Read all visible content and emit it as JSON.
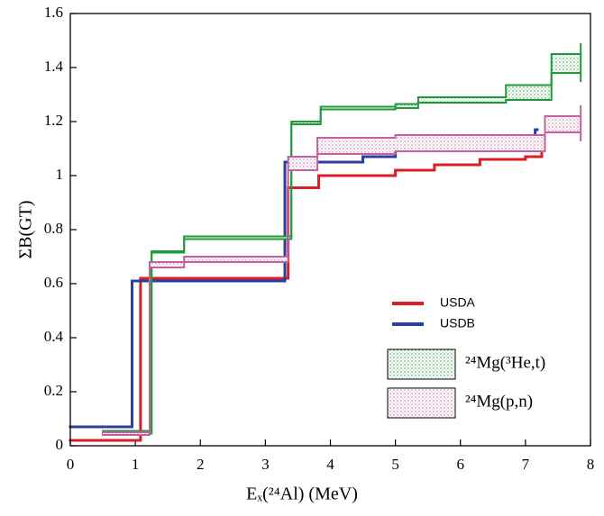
{
  "chart_data": {
    "type": "line",
    "step": "post",
    "x_label": "Eₓ(²⁴Al) (MeV)",
    "y_label": "ΣB(GT)",
    "xlim": [
      0,
      8
    ],
    "xticks": [
      0,
      1,
      2,
      3,
      4,
      5,
      6,
      7,
      8
    ],
    "ylim": [
      0,
      1.6
    ],
    "yticks": [
      0,
      0.2,
      0.4,
      0.6,
      0.8,
      1,
      1.2,
      1.4,
      1.6
    ],
    "series": [
      {
        "name": "USDA",
        "color": "#d81e27",
        "x": [
          0,
          1.08,
          3.35,
          3.82,
          5.0,
          5.6,
          6.3,
          7.0,
          7.25
        ],
        "x_end": 7.28,
        "values": [
          0.02,
          0.62,
          0.955,
          1.0,
          1.02,
          1.04,
          1.06,
          1.07,
          1.14
        ]
      },
      {
        "name": "USDB",
        "color": "#2b3f9a",
        "x": [
          0,
          0.95,
          3.3,
          4.5,
          5.0,
          5.6,
          6.2,
          6.8,
          7.15
        ],
        "x_end": 7.18,
        "values": [
          0.07,
          0.61,
          1.05,
          1.07,
          1.1,
          1.11,
          1.12,
          1.13,
          1.17
        ]
      },
      {
        "name": "²⁴Mg(³He,t)",
        "color": "#1e9a3a",
        "x": [
          0.5,
          1.25,
          1.75,
          3.4,
          3.85,
          5.0,
          5.35,
          6.7,
          7.4
        ],
        "x_end": 7.85,
        "values": [
          0.055,
          0.72,
          0.775,
          1.2,
          1.255,
          1.265,
          1.29,
          1.335,
          1.45
        ],
        "low": [
          0.045,
          0.715,
          0.765,
          1.19,
          1.245,
          1.25,
          1.27,
          1.28,
          1.38
        ]
      },
      {
        "name": "²⁴Mg(p,n)",
        "color": "#c4609f",
        "x": [
          0.5,
          1.22,
          1.75,
          3.35,
          3.8,
          5.0,
          7.3
        ],
        "x_end": 7.85,
        "values": [
          0.05,
          0.68,
          0.7,
          1.07,
          1.14,
          1.15,
          1.22
        ],
        "low": [
          0.04,
          0.66,
          0.68,
          1.02,
          1.08,
          1.09,
          1.16
        ]
      }
    ]
  }
}
